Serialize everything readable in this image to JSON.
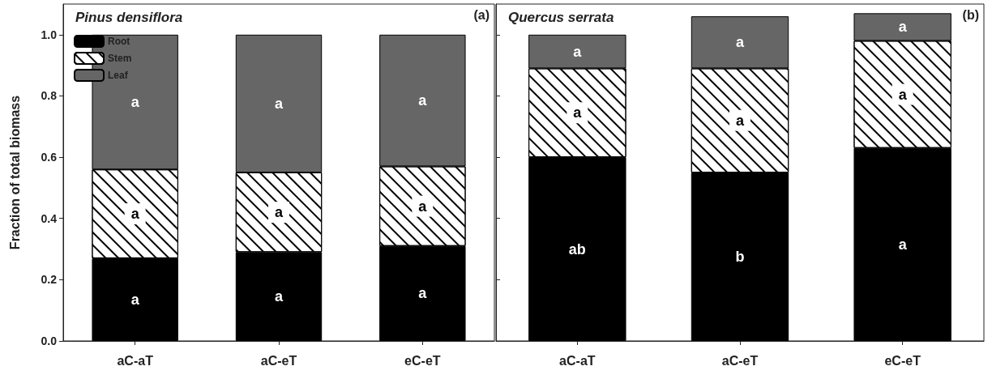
{
  "chart_data": [
    {
      "type": "bar",
      "stacked": true,
      "title": "Pinus densiflora",
      "ylabel": "Fraction of total biomass",
      "categories": [
        "aC-aT",
        "aC-eT",
        "eC-eT"
      ],
      "series": [
        {
          "name": "Root",
          "color": "#000000",
          "values": [
            0.27,
            0.29,
            0.31
          ]
        },
        {
          "name": "Stem",
          "color": "#ffffff",
          "values": [
            0.29,
            0.26,
            0.26
          ]
        },
        {
          "name": "Leaf",
          "color": "#666666",
          "values": [
            0.44,
            0.45,
            0.43
          ]
        }
      ],
      "ylim": [
        0,
        1.1
      ],
      "yticks": [
        {
          "value": 0,
          "label": "0.0"
        },
        0.2,
        0.4,
        0.6,
        0.8,
        {
          "value": 1,
          "label": "1.0"
        }
      ],
      "grid": false,
      "legend": "top left",
      "annotations": [
        "(a)",
        "a",
        "a",
        "a",
        "a",
        "a",
        "a",
        "a",
        "a",
        "a"
      ]
    },
    {
      "type": "bar",
      "stacked": true,
      "title": "Quercus serrata",
      "categories": [
        "aC-aT",
        "aC-eT",
        "eC-eT"
      ],
      "series": [
        {
          "color": "#000000",
          "values": [
            0.6,
            0.55,
            0.63
          ]
        },
        {
          "color": "#ffffff",
          "values": [
            0.29,
            0.34,
            0.35
          ]
        },
        {
          "color": "#666666",
          "values": [
            0.11,
            0.17,
            0.09
          ]
        }
      ],
      "ylim": [
        0,
        1.1
      ],
      "yticks": [
        0,
        0.2,
        0.4,
        0.6,
        0.8,
        1
      ],
      "grid": false,
      "legend": false,
      "tick_labels": "x",
      "annotations": [
        "(b)",
        "ab",
        "b",
        "a",
        "a",
        "a",
        "a",
        "a",
        "a",
        "a"
      ]
    }
  ]
}
